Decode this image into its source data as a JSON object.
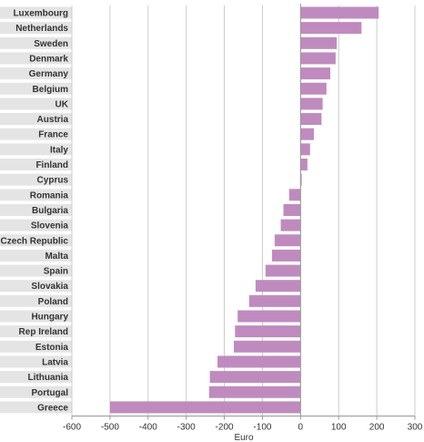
{
  "chart_data": {
    "type": "bar",
    "orientation": "horizontal",
    "categories": [
      "Luxembourg",
      "Netherlands",
      "Sweden",
      "Denmark",
      "Germany",
      "Belgium",
      "UK",
      "Austria",
      "France",
      "Italy",
      "Finland",
      "Cyprus",
      "Romania",
      "Bulgaria",
      "Slovenia",
      "Czech Republic",
      "Malta",
      "Spain",
      "Slovakia",
      "Poland",
      "Hungary",
      "Rep Ireland",
      "Estonia",
      "Latvia",
      "Lithuania",
      "Portugal",
      "Greece"
    ],
    "values": [
      205,
      160,
      95,
      92,
      78,
      68,
      58,
      55,
      35,
      25,
      18,
      3,
      -30,
      -45,
      -52,
      -68,
      -75,
      -92,
      -118,
      -135,
      -165,
      -172,
      -175,
      -218,
      -238,
      -240,
      -500
    ],
    "xlabel": "Euro",
    "ylabel": "",
    "xlim": [
      -600,
      300
    ],
    "xticks": [
      -600,
      -500,
      -400,
      -300,
      -200,
      -100,
      0,
      100,
      200,
      300
    ],
    "grid": true,
    "colors": {
      "bar": "#bf8bbf",
      "label_band": "#e4e4e4",
      "grid": "#cccccc",
      "axis": "#999999",
      "text": "#333333"
    }
  }
}
